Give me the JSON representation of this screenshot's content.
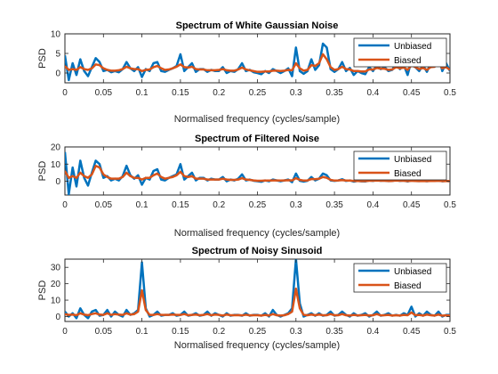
{
  "colors": {
    "unbiased": "#0072BD",
    "biased": "#D95319",
    "axis": "#262626"
  },
  "chart_data": [
    {
      "type": "line",
      "title": "Spectrum of White Gaussian Noise",
      "xlabel": "Normalised frequency (cycles/sample)",
      "ylabel": "PSD",
      "xlim": [
        0,
        0.5
      ],
      "ylim": [
        -2.5,
        10
      ],
      "xticks": [
        0,
        0.05,
        0.1,
        0.15,
        0.2,
        0.25,
        0.3,
        0.35,
        0.4,
        0.45,
        0.5
      ],
      "xtick_labels": [
        "0",
        "0.05",
        "0.1",
        "0.15",
        "0.2",
        "0.25",
        "0.3",
        "0.35",
        "0.4",
        "0.45",
        "0.5"
      ],
      "yticks": [
        0,
        5,
        10
      ],
      "ytick_labels": [
        "0",
        "5",
        "10"
      ],
      "legend": "top-right",
      "x": [
        0,
        0.005,
        0.01,
        0.015,
        0.02,
        0.025,
        0.03,
        0.035,
        0.04,
        0.045,
        0.05,
        0.055,
        0.06,
        0.065,
        0.07,
        0.075,
        0.08,
        0.085,
        0.09,
        0.095,
        0.1,
        0.105,
        0.11,
        0.115,
        0.12,
        0.125,
        0.13,
        0.135,
        0.14,
        0.145,
        0.15,
        0.155,
        0.16,
        0.165,
        0.17,
        0.175,
        0.18,
        0.185,
        0.19,
        0.195,
        0.2,
        0.205,
        0.21,
        0.215,
        0.22,
        0.225,
        0.23,
        0.235,
        0.24,
        0.245,
        0.25,
        0.255,
        0.26,
        0.265,
        0.27,
        0.275,
        0.28,
        0.285,
        0.29,
        0.295,
        0.3,
        0.305,
        0.31,
        0.315,
        0.32,
        0.325,
        0.33,
        0.335,
        0.34,
        0.345,
        0.35,
        0.355,
        0.36,
        0.365,
        0.37,
        0.375,
        0.38,
        0.385,
        0.39,
        0.395,
        0.4,
        0.405,
        0.41,
        0.415,
        0.42,
        0.425,
        0.43,
        0.435,
        0.44,
        0.445,
        0.45,
        0.455,
        0.46,
        0.465,
        0.47,
        0.475,
        0.48,
        0.485,
        0.49,
        0.495,
        0.5
      ],
      "series": [
        {
          "name": "Unbiased",
          "values": [
            4.5,
            -1.8,
            2.5,
            -0.5,
            3.5,
            0.5,
            -0.8,
            1.5,
            3.8,
            2.8,
            0.5,
            0.8,
            0.2,
            0.5,
            0.2,
            1,
            2.8,
            1.2,
            0.5,
            1.5,
            -1,
            1,
            0.5,
            2.5,
            2.8,
            0.5,
            0.3,
            0.8,
            1.2,
            1.8,
            4.8,
            0.5,
            1.5,
            2.5,
            0.3,
            1,
            1,
            0.3,
            0.8,
            0.5,
            0.5,
            1.5,
            0,
            0.5,
            0.3,
            1,
            2.5,
            0.5,
            0.8,
            0.2,
            0,
            -0.3,
            0.5,
            0,
            1,
            0.5,
            0,
            0.5,
            1.2,
            -0.8,
            6.5,
            0.5,
            -0.2,
            0.5,
            3.5,
            0.8,
            2,
            7.5,
            6.5,
            1,
            0.3,
            1,
            2.8,
            0.5,
            1.3,
            -0.5,
            0.5,
            0,
            -0.3,
            1.5,
            0.5,
            2,
            1,
            1.5,
            0.5,
            0.8,
            2.5,
            1,
            2,
            -0.5,
            3.2,
            1.5,
            0.5,
            2,
            0.3,
            2.5,
            2,
            4.5,
            0.5,
            2.5,
            0.5
          ]
        },
        {
          "name": "Biased",
          "values": [
            1.8,
            0.8,
            1,
            0.8,
            1.5,
            1,
            0.8,
            1.2,
            2.2,
            2,
            1.2,
            0.8,
            0.6,
            0.6,
            0.7,
            1,
            1.6,
            1.2,
            1,
            1,
            0.5,
            0.8,
            0.9,
            1.5,
            1.8,
            1.2,
            0.8,
            0.9,
            1.2,
            1.6,
            2.2,
            1.5,
            1.4,
            1.6,
            1,
            0.9,
            0.9,
            0.7,
            0.7,
            0.7,
            0.8,
            1,
            0.7,
            0.6,
            0.6,
            0.9,
            1.4,
            0.9,
            0.7,
            0.5,
            0.3,
            0.3,
            0.4,
            0.4,
            0.6,
            0.6,
            0.5,
            0.6,
            0.8,
            0.7,
            2.5,
            1.2,
            0.6,
            0.8,
            2,
            1.8,
            2.5,
            4.8,
            3.5,
            1.5,
            0.8,
            1,
            1.6,
            1,
            0.9,
            0.5,
            0.5,
            0.4,
            0.4,
            0.9,
            0.9,
            1.3,
            1.1,
            1.1,
            0.8,
            0.9,
            1.5,
            1.2,
            1.4,
            0.8,
            2,
            1.5,
            1,
            1.3,
            0.8,
            1.5,
            1.6,
            2.5,
            1.2,
            1.5,
            0.8
          ]
        }
      ]
    },
    {
      "type": "line",
      "title": "Spectrum of Filtered Noise",
      "xlabel": "Normalised frequency (cycles/sample)",
      "ylabel": "PSD",
      "xlim": [
        0,
        0.5
      ],
      "ylim": [
        -8,
        20
      ],
      "xticks": [
        0,
        0.05,
        0.1,
        0.15,
        0.2,
        0.25,
        0.3,
        0.35,
        0.4,
        0.45,
        0.5
      ],
      "xtick_labels": [
        "0",
        "0.05",
        "0.1",
        "0.15",
        "0.2",
        "0.25",
        "0.3",
        "0.35",
        "0.4",
        "0.45",
        "0.5"
      ],
      "yticks": [
        0,
        10,
        20
      ],
      "ytick_labels": [
        "0",
        "10",
        "20"
      ],
      "legend": "top-right",
      "x": [
        0,
        0.005,
        0.01,
        0.015,
        0.02,
        0.025,
        0.03,
        0.035,
        0.04,
        0.045,
        0.05,
        0.055,
        0.06,
        0.065,
        0.07,
        0.075,
        0.08,
        0.085,
        0.09,
        0.095,
        0.1,
        0.105,
        0.11,
        0.115,
        0.12,
        0.125,
        0.13,
        0.135,
        0.14,
        0.145,
        0.15,
        0.155,
        0.16,
        0.165,
        0.17,
        0.175,
        0.18,
        0.185,
        0.19,
        0.195,
        0.2,
        0.205,
        0.21,
        0.215,
        0.22,
        0.225,
        0.23,
        0.235,
        0.24,
        0.245,
        0.25,
        0.255,
        0.26,
        0.265,
        0.27,
        0.275,
        0.28,
        0.285,
        0.29,
        0.295,
        0.3,
        0.305,
        0.31,
        0.315,
        0.32,
        0.325,
        0.33,
        0.335,
        0.34,
        0.345,
        0.35,
        0.355,
        0.36,
        0.365,
        0.37,
        0.375,
        0.38,
        0.385,
        0.39,
        0.395,
        0.4,
        0.405,
        0.41,
        0.415,
        0.42,
        0.425,
        0.43,
        0.435,
        0.44,
        0.445,
        0.45,
        0.455,
        0.46,
        0.465,
        0.47,
        0.475,
        0.48,
        0.485,
        0.49,
        0.495,
        0.5
      ],
      "series": [
        {
          "name": "Unbiased",
          "values": [
            17,
            -7.5,
            8,
            -3,
            12,
            2,
            -2.5,
            5,
            12,
            10,
            2,
            3,
            0.5,
            1.5,
            0.5,
            3,
            9,
            3.5,
            1.5,
            3.5,
            -2,
            2,
            1,
            6,
            7,
            1,
            0.5,
            2,
            3,
            4,
            10,
            1,
            3,
            5,
            0.5,
            2,
            2,
            0.5,
            1.5,
            1,
            1,
            2.5,
            0,
            1,
            0.5,
            1.5,
            4,
            0.5,
            1,
            0.3,
            0,
            -0.3,
            0.5,
            0,
            1,
            0.5,
            0,
            0.5,
            1,
            -0.5,
            4.5,
            0.3,
            -0.2,
            0.3,
            2.5,
            0.5,
            1.5,
            4.5,
            3.5,
            0.5,
            0.2,
            0.5,
            1.2,
            0.2,
            0.5,
            -0.2,
            0.2,
            0,
            -0.1,
            0.5,
            0.2,
            0.6,
            0.3,
            0.4,
            0.1,
            0.2,
            0.6,
            0.2,
            0.4,
            -0.1,
            0.5,
            0.2,
            0.1,
            0.3,
            0,
            0.3,
            0.2,
            0.4,
            0,
            0.2,
            0
          ]
        },
        {
          "name": "Biased",
          "values": [
            6,
            2,
            3,
            2,
            5,
            3,
            2,
            4,
            9,
            8,
            4,
            2.5,
            1.5,
            1.5,
            1.5,
            2.5,
            5,
            3,
            2,
            2,
            1,
            2,
            2,
            3.5,
            4.5,
            2.5,
            1.5,
            2,
            2.5,
            3.5,
            5.5,
            3,
            2.5,
            3,
            1.5,
            1.5,
            1.5,
            1,
            1,
            1,
            1,
            1.5,
            1,
            0.8,
            0.8,
            1,
            1.8,
            1,
            0.8,
            0.5,
            0.3,
            0.3,
            0.4,
            0.4,
            0.5,
            0.5,
            0.4,
            0.5,
            0.6,
            0.5,
            1.8,
            0.8,
            0.4,
            0.5,
            1.3,
            1.2,
            1.5,
            2.5,
            2,
            0.8,
            0.4,
            0.5,
            0.7,
            0.4,
            0.4,
            0.2,
            0.2,
            0.1,
            0.1,
            0.3,
            0.3,
            0.4,
            0.3,
            0.3,
            0.2,
            0.2,
            0.4,
            0.3,
            0.3,
            0.1,
            0.3,
            0.2,
            0.1,
            0.2,
            0.1,
            0.2,
            0.2,
            0.3,
            0.1,
            0.2,
            0.1
          ]
        }
      ]
    },
    {
      "type": "line",
      "title": "Spectrum of Noisy Sinusoid",
      "xlabel": "Normalised frequency (cycles/sample)",
      "ylabel": "PSD",
      "xlim": [
        0,
        0.5
      ],
      "ylim": [
        -3,
        35
      ],
      "xticks": [
        0,
        0.05,
        0.1,
        0.15,
        0.2,
        0.25,
        0.3,
        0.35,
        0.4,
        0.45,
        0.5
      ],
      "xtick_labels": [
        "0",
        "0.05",
        "0.1",
        "0.15",
        "0.2",
        "0.25",
        "0.3",
        "0.35",
        "0.4",
        "0.45",
        "0.5"
      ],
      "yticks": [
        0,
        10,
        20,
        30
      ],
      "ytick_labels": [
        "0",
        "10",
        "20",
        "30"
      ],
      "legend": "top-right",
      "x": [
        0,
        0.005,
        0.01,
        0.015,
        0.02,
        0.025,
        0.03,
        0.035,
        0.04,
        0.045,
        0.05,
        0.055,
        0.06,
        0.065,
        0.07,
        0.075,
        0.08,
        0.085,
        0.09,
        0.095,
        0.1,
        0.105,
        0.11,
        0.115,
        0.12,
        0.125,
        0.13,
        0.135,
        0.14,
        0.145,
        0.15,
        0.155,
        0.16,
        0.165,
        0.17,
        0.175,
        0.18,
        0.185,
        0.19,
        0.195,
        0.2,
        0.205,
        0.21,
        0.215,
        0.22,
        0.225,
        0.23,
        0.235,
        0.24,
        0.245,
        0.25,
        0.255,
        0.26,
        0.265,
        0.27,
        0.275,
        0.28,
        0.285,
        0.29,
        0.295,
        0.3,
        0.305,
        0.31,
        0.315,
        0.32,
        0.325,
        0.33,
        0.335,
        0.34,
        0.345,
        0.35,
        0.355,
        0.36,
        0.365,
        0.37,
        0.375,
        0.38,
        0.385,
        0.39,
        0.395,
        0.4,
        0.405,
        0.41,
        0.415,
        0.42,
        0.425,
        0.43,
        0.435,
        0.44,
        0.445,
        0.45,
        0.455,
        0.46,
        0.465,
        0.47,
        0.475,
        0.48,
        0.485,
        0.49,
        0.495,
        0.5
      ],
      "series": [
        {
          "name": "Unbiased",
          "values": [
            3,
            0,
            2,
            -1,
            5,
            1,
            -1,
            3,
            4,
            0.5,
            1,
            4,
            0,
            3,
            1,
            0,
            4,
            1,
            2,
            4,
            33,
            5,
            0,
            1,
            3,
            0.5,
            1,
            1,
            2,
            0.5,
            1,
            3,
            0.5,
            1,
            2,
            0.5,
            1,
            3,
            0.5,
            2,
            1,
            0,
            2,
            0.5,
            1,
            1,
            0.5,
            2,
            0.5,
            1,
            1,
            0.5,
            2,
            0,
            4,
            1,
            0,
            1,
            2,
            5,
            35,
            8,
            0,
            1,
            2,
            0.5,
            2,
            0.5,
            1,
            3,
            0.5,
            1,
            3,
            1,
            0,
            2,
            0.5,
            1,
            2,
            0,
            1,
            3,
            0.5,
            1,
            2,
            0.5,
            1,
            0.5,
            2,
            1,
            6,
            0,
            2,
            0.5,
            3,
            1,
            0.5,
            3,
            0,
            1,
            1
          ]
        },
        {
          "name": "Biased",
          "values": [
            1.5,
            1,
            1.2,
            0.8,
            2,
            1.2,
            0.8,
            1.5,
            2,
            1.2,
            1,
            2,
            1,
            1.5,
            1.2,
            1,
            2,
            1.2,
            1.5,
            3,
            16,
            4,
            1,
            1,
            1.5,
            1,
            1,
            1,
            1.2,
            1,
            1,
            1.5,
            0.8,
            1,
            1.2,
            0.8,
            1,
            1.5,
            0.8,
            1.2,
            1,
            0.6,
            1.2,
            0.8,
            0.8,
            0.9,
            0.7,
            1.1,
            0.7,
            0.8,
            0.8,
            0.6,
            1,
            0.6,
            1.5,
            0.8,
            0.6,
            0.8,
            1.5,
            3,
            17,
            5,
            1,
            0.8,
            1.2,
            0.8,
            1.2,
            0.8,
            0.8,
            1.5,
            0.8,
            0.8,
            1.5,
            0.8,
            0.6,
            1,
            0.7,
            0.8,
            1,
            0.6,
            0.8,
            1.5,
            0.7,
            0.8,
            1,
            0.6,
            0.8,
            0.6,
            1,
            0.8,
            2.5,
            0.8,
            1,
            0.6,
            1.2,
            0.8,
            0.6,
            1.2,
            0.5,
            0.7,
            0.6
          ]
        }
      ]
    }
  ]
}
